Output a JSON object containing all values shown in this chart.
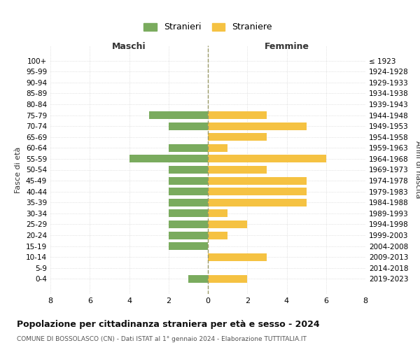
{
  "age_groups": [
    "100+",
    "95-99",
    "90-94",
    "85-89",
    "80-84",
    "75-79",
    "70-74",
    "65-69",
    "60-64",
    "55-59",
    "50-54",
    "45-49",
    "40-44",
    "35-39",
    "30-34",
    "25-29",
    "20-24",
    "15-19",
    "10-14",
    "5-9",
    "0-4"
  ],
  "birth_years": [
    "≤ 1923",
    "1924-1928",
    "1929-1933",
    "1934-1938",
    "1939-1943",
    "1944-1948",
    "1949-1953",
    "1954-1958",
    "1959-1963",
    "1964-1968",
    "1969-1973",
    "1974-1978",
    "1979-1983",
    "1984-1988",
    "1989-1993",
    "1994-1998",
    "1999-2003",
    "2004-2008",
    "2009-2013",
    "2014-2018",
    "2019-2023"
  ],
  "maschi": [
    0,
    0,
    0,
    0,
    0,
    3,
    2,
    0,
    2,
    4,
    2,
    2,
    2,
    2,
    2,
    2,
    2,
    2,
    0,
    0,
    1
  ],
  "femmine": [
    0,
    0,
    0,
    0,
    0,
    3,
    5,
    3,
    1,
    6,
    3,
    5,
    5,
    5,
    1,
    2,
    1,
    0,
    3,
    0,
    2
  ],
  "color_maschi": "#7aab5e",
  "color_femmine": "#f5c242",
  "title": "Popolazione per cittadinanza straniera per età e sesso - 2024",
  "subtitle": "COMUNE DI BOSSOLASCO (CN) - Dati ISTAT al 1° gennaio 2024 - Elaborazione TUTTITALIA.IT",
  "xlabel_left": "Maschi",
  "xlabel_right": "Femmine",
  "ylabel_left": "Fasce di età",
  "ylabel_right": "Anni di nascita",
  "legend_maschi": "Stranieri",
  "legend_femmine": "Straniere",
  "xlim": 8,
  "background_color": "#ffffff",
  "grid_color": "#cccccc"
}
